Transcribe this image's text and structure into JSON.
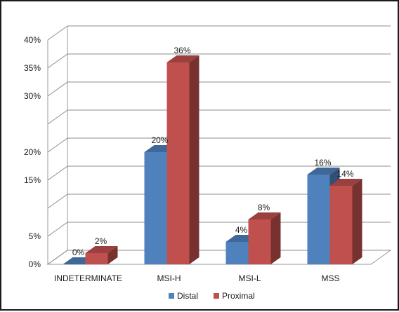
{
  "chart_data": {
    "type": "bar",
    "title": "",
    "xlabel": "",
    "ylabel": "",
    "categories": [
      "INDETERMINATE",
      "MSI-H",
      "MSI-L",
      "MSS"
    ],
    "series": [
      {
        "name": "Distal",
        "values": [
          0,
          20,
          4,
          16
        ],
        "labels": [
          "0%",
          "20%",
          "4%",
          "16%"
        ],
        "color": "#4f81bd"
      },
      {
        "name": "Proximal",
        "values": [
          2,
          36,
          8,
          14
        ],
        "labels": [
          "2%",
          "36%",
          "8%",
          "14%"
        ],
        "color": "#c0504d"
      }
    ],
    "ylim": [
      0,
      40
    ],
    "y_ticks": [
      {
        "value": 0,
        "label": "0%"
      },
      {
        "value": 5,
        "label": "5%"
      },
      {
        "value": 10,
        "label": ""
      },
      {
        "value": 15,
        "label": "15%"
      },
      {
        "value": 20,
        "label": "20%"
      },
      {
        "value": 25,
        "label": ""
      },
      {
        "value": 30,
        "label": "30%"
      },
      {
        "value": 35,
        "label": "35%"
      },
      {
        "value": 40,
        "label": "40%"
      }
    ],
    "grid": true,
    "style": "3d-clustered-column",
    "legend_position": "bottom"
  }
}
